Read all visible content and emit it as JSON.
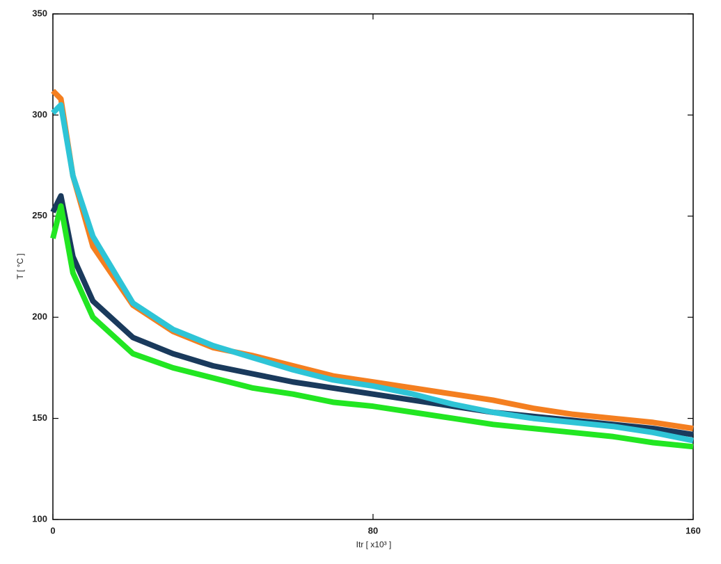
{
  "chart_data": {
    "type": "line",
    "xlabel": "Itr [ x10³ ]",
    "ylabel": "T [ °C ]",
    "x": [
      0,
      2,
      5,
      10,
      20,
      30,
      40,
      50,
      60,
      70,
      80,
      90,
      100,
      110,
      120,
      130,
      140,
      150,
      160
    ],
    "series": [
      {
        "color": "#f47f20",
        "values": [
          312,
          308,
          270,
          235,
          206,
          193,
          185,
          181,
          176,
          171,
          168,
          165,
          162,
          159,
          155,
          152,
          150,
          148,
          145
        ]
      },
      {
        "color": "#1a3a5c",
        "values": [
          252,
          260,
          230,
          208,
          190,
          182,
          176,
          172,
          168,
          165,
          162,
          159,
          156,
          153,
          151,
          149,
          147,
          145,
          142
        ]
      },
      {
        "color": "#2ec4d6",
        "values": [
          301,
          305,
          270,
          240,
          207,
          194,
          186,
          180,
          174,
          169,
          166,
          162,
          157,
          153,
          150,
          148,
          146,
          143,
          139
        ]
      },
      {
        "color": "#22e622",
        "values": [
          239,
          255,
          222,
          200,
          182,
          175,
          170,
          165,
          162,
          158,
          156,
          153,
          150,
          147,
          145,
          143,
          141,
          138,
          136
        ]
      }
    ],
    "xlim": [
      0,
      160
    ],
    "xticks": [
      0,
      80,
      160
    ],
    "ylim": [
      100,
      350
    ],
    "yticks": [
      100,
      150,
      200,
      250,
      300,
      350
    ]
  }
}
